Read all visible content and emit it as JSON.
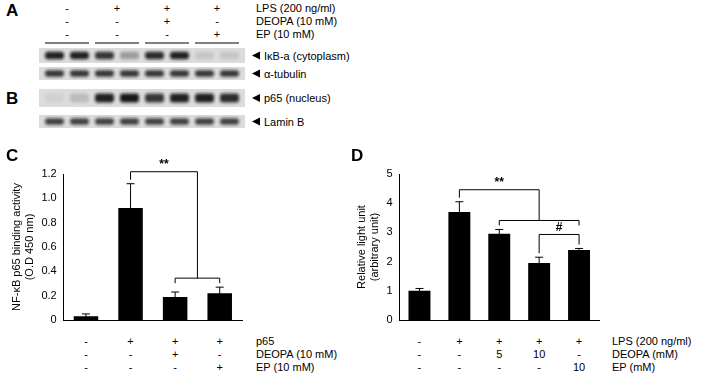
{
  "blots": {
    "conditions": [
      {
        "label": "LPS (200 ng/ml)",
        "signs": [
          "-",
          "+",
          "+",
          "+"
        ]
      },
      {
        "label": "DEOPA (10 mM)",
        "signs": [
          "-",
          "-",
          "+",
          "-"
        ]
      },
      {
        "label": "EP (10 mM)",
        "signs": [
          "-",
          "-",
          "-",
          "+"
        ]
      }
    ],
    "panels": [
      {
        "title": "A",
        "rows": [
          {
            "label": "IκB-a (cytoplasm)",
            "intensities": [
              0.9,
              0.9,
              0.8,
              0.3,
              0.85,
              0.9,
              0.1,
              0.1
            ]
          },
          {
            "label": "α-tubulin",
            "intensities": [
              0.8,
              0.8,
              0.8,
              0.8,
              0.8,
              0.8,
              0.8,
              0.8
            ]
          }
        ]
      },
      {
        "title": "B",
        "rows": [
          {
            "label": "p65 (nucleus)",
            "intensities": [
              0.05,
              0.15,
              0.9,
              0.95,
              0.8,
              0.9,
              0.9,
              0.85
            ]
          },
          {
            "label": "Lamin B",
            "intensities": [
              0.75,
              0.75,
              0.75,
              0.75,
              0.75,
              0.75,
              0.75,
              0.75
            ]
          }
        ]
      }
    ]
  },
  "chart_data": [
    {
      "title": "C",
      "type": "bar",
      "categories": [
        null,
        null,
        null,
        null
      ],
      "values": [
        0.03,
        0.92,
        0.19,
        0.22
      ],
      "errors": [
        0.02,
        0.2,
        0.04,
        0.05
      ],
      "color": "#000000",
      "ylim": [
        0,
        1.2
      ],
      "yticks": [
        0,
        0.2,
        0.4,
        0.6,
        0.8,
        {
          "value": 1,
          "label": "1.0"
        },
        1.2
      ],
      "y_label": [
        "NF-κB p65 binding activity",
        "(O.D 450 nm)"
      ],
      "grid": false,
      "tick_labels": "y",
      "conditions": [
        {
          "label": "p65",
          "signs": [
            "-",
            "+",
            "+",
            "+"
          ]
        },
        {
          "label": "DEOPA (10 mM)",
          "signs": [
            "-",
            "-",
            "+",
            "-"
          ]
        },
        {
          "label": "EP (10 mM)",
          "signs": [
            "-",
            "-",
            "-",
            "+"
          ]
        }
      ],
      "annotations": [
        {
          "text": "**",
          "from": 1,
          "to": [
            2,
            3
          ]
        }
      ]
    },
    {
      "title": "D",
      "type": "bar",
      "categories": [
        null,
        null,
        null,
        null,
        null
      ],
      "values": [
        1.0,
        3.7,
        2.95,
        1.95,
        2.4
      ],
      "errors": [
        0.08,
        0.35,
        0.15,
        0.2,
        0.05
      ],
      "color": "#000000",
      "ylim": [
        0,
        5
      ],
      "yticks": [
        0,
        1,
        2,
        3,
        4,
        5
      ],
      "y_label": [
        "Relative light unit",
        "(arbitrary unit)"
      ],
      "grid": false,
      "tick_labels": "y",
      "conditions": [
        {
          "label": "LPS (200 ng/ml)",
          "signs": [
            "-",
            "+",
            "+",
            "+",
            "+"
          ]
        },
        {
          "label": "DEOPA (mM)",
          "signs": [
            "-",
            "-",
            "5",
            "10",
            "-"
          ]
        },
        {
          "label": "EP (mM)",
          "signs": [
            "-",
            "-",
            "-",
            "-",
            "10"
          ]
        }
      ],
      "annotations": [
        {
          "text": "**",
          "from": 1,
          "to": [
            2,
            3,
            4
          ]
        },
        {
          "text": "#",
          "from": 3,
          "to": [
            4
          ]
        }
      ]
    }
  ]
}
